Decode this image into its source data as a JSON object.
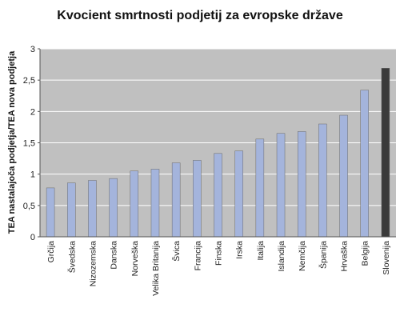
{
  "chart_data": {
    "type": "bar",
    "title": "Kvocient smrtnosti podjetij za evropske države",
    "xlabel": "",
    "ylabel": "TEA nastalajoča podjetja/TEA nova podjetja",
    "ylim": [
      0,
      3
    ],
    "yticks": [
      "0",
      "0,5",
      "1",
      "1,5",
      "2",
      "2,5",
      "3"
    ],
    "ytick_values": [
      0,
      0.5,
      1,
      1.5,
      2,
      2.5,
      3
    ],
    "grid": true,
    "categories": [
      "Grčija",
      "Švedska",
      "Nizozemska",
      "Danska",
      "Norveška",
      "Velika Britanija",
      "Švica",
      "Francija",
      "Finska",
      "Irska",
      "Italija",
      "Islandija",
      "Nemčija",
      "Španija",
      "Hrvaška",
      "Belgija",
      "Slovenija"
    ],
    "values": [
      0.78,
      0.86,
      0.9,
      0.93,
      1.05,
      1.08,
      1.18,
      1.22,
      1.33,
      1.37,
      1.56,
      1.65,
      1.68,
      1.8,
      1.94,
      2.34,
      2.69
    ],
    "colors": {
      "bar": "#a4b4dc",
      "highlight_bar": "#3a3a3a",
      "plot_background": "#c0c0c0",
      "grid": "#ffffff"
    },
    "highlight_category": "Slovenija"
  }
}
